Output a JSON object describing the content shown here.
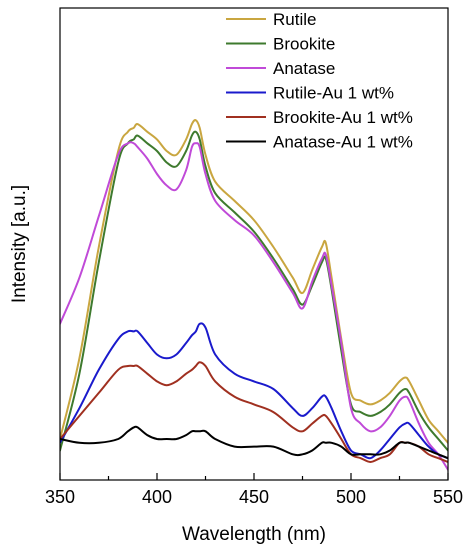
{
  "chart_data": {
    "type": "line",
    "xlabel": "Wavelength (nm)",
    "ylabel": "Intensity [a.u.]",
    "xlim": [
      350,
      550
    ],
    "ylim": [
      0,
      1
    ],
    "x_ticks": [
      350,
      400,
      450,
      500,
      550
    ],
    "y_ticks_labeled": false,
    "grid": false,
    "legend_position": "top-right",
    "x": [
      350,
      360,
      370,
      380,
      385,
      388,
      390,
      395,
      400,
      405,
      410,
      415,
      418,
      420,
      422,
      425,
      430,
      440,
      450,
      460,
      470,
      475,
      480,
      485,
      487,
      490,
      495,
      500,
      505,
      510,
      515,
      520,
      525,
      528,
      530,
      535,
      540,
      545,
      550
    ],
    "series": [
      {
        "name": "Rutile",
        "color": "#C9A640",
        "values": [
          0.06,
          0.27,
          0.56,
          0.81,
          0.86,
          0.87,
          0.88,
          0.86,
          0.84,
          0.81,
          0.8,
          0.84,
          0.88,
          0.89,
          0.87,
          0.8,
          0.73,
          0.68,
          0.63,
          0.56,
          0.48,
          0.44,
          0.5,
          0.56,
          0.57,
          0.48,
          0.32,
          0.18,
          0.16,
          0.15,
          0.16,
          0.18,
          0.21,
          0.22,
          0.21,
          0.16,
          0.11,
          0.08,
          0.05
        ]
      },
      {
        "name": "Brookite",
        "color": "#3E7A2E",
        "values": [
          0.03,
          0.23,
          0.52,
          0.78,
          0.83,
          0.84,
          0.85,
          0.83,
          0.81,
          0.78,
          0.77,
          0.81,
          0.85,
          0.86,
          0.84,
          0.77,
          0.7,
          0.65,
          0.6,
          0.53,
          0.45,
          0.41,
          0.46,
          0.52,
          0.53,
          0.45,
          0.29,
          0.15,
          0.13,
          0.12,
          0.13,
          0.15,
          0.18,
          0.19,
          0.18,
          0.13,
          0.09,
          0.06,
          0.03
        ]
      },
      {
        "name": "Anatase",
        "color": "#C04AD8",
        "values": [
          0.36,
          0.48,
          0.64,
          0.8,
          0.83,
          0.83,
          0.82,
          0.79,
          0.75,
          0.72,
          0.71,
          0.76,
          0.82,
          0.83,
          0.82,
          0.75,
          0.68,
          0.63,
          0.59,
          0.52,
          0.44,
          0.4,
          0.47,
          0.53,
          0.54,
          0.46,
          0.31,
          0.14,
          0.1,
          0.08,
          0.09,
          0.12,
          0.16,
          0.17,
          0.16,
          0.1,
          0.05,
          0.02,
          -0.02
        ]
      },
      {
        "name": "Rutile-Au 1 wt%",
        "color": "#1A1ACC",
        "values": [
          0.05,
          0.14,
          0.24,
          0.32,
          0.34,
          0.34,
          0.34,
          0.31,
          0.28,
          0.27,
          0.28,
          0.31,
          0.33,
          0.34,
          0.36,
          0.35,
          0.28,
          0.23,
          0.21,
          0.19,
          0.14,
          0.12,
          0.14,
          0.17,
          0.17,
          0.14,
          0.08,
          0.03,
          0.02,
          0.01,
          0.03,
          0.06,
          0.09,
          0.1,
          0.1,
          0.07,
          0.04,
          0.02,
          0.01
        ]
      },
      {
        "name": "Brookite-Au 1 wt%",
        "color": "#A03020",
        "values": [
          0.06,
          0.12,
          0.18,
          0.24,
          0.25,
          0.25,
          0.25,
          0.23,
          0.21,
          0.2,
          0.21,
          0.23,
          0.24,
          0.25,
          0.26,
          0.25,
          0.21,
          0.17,
          0.15,
          0.13,
          0.09,
          0.08,
          0.1,
          0.12,
          0.12,
          0.1,
          0.06,
          0.02,
          0.01,
          0.0,
          0.01,
          0.02,
          0.05,
          0.05,
          0.05,
          0.04,
          0.02,
          0.01,
          0.0
        ]
      },
      {
        "name": "Anatase-Au 1 wt%",
        "color": "#000000",
        "values": [
          0.06,
          0.05,
          0.05,
          0.06,
          0.08,
          0.09,
          0.09,
          0.07,
          0.06,
          0.06,
          0.06,
          0.07,
          0.08,
          0.08,
          0.08,
          0.08,
          0.06,
          0.04,
          0.04,
          0.04,
          0.02,
          0.02,
          0.03,
          0.05,
          0.05,
          0.05,
          0.04,
          0.02,
          0.02,
          0.02,
          0.02,
          0.03,
          0.05,
          0.05,
          0.05,
          0.04,
          0.03,
          0.02,
          0.01
        ]
      }
    ]
  }
}
